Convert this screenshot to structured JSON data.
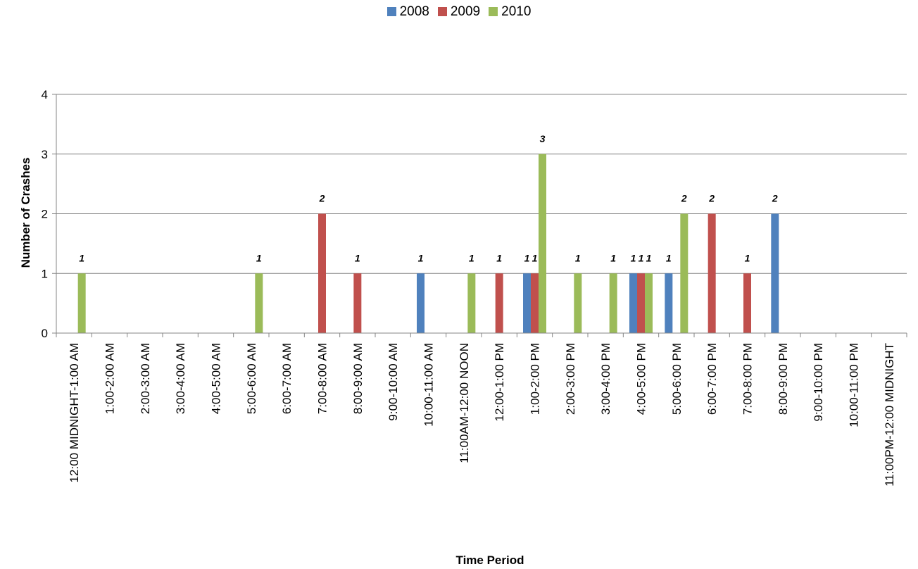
{
  "chart_data": {
    "type": "bar",
    "title": "",
    "xlabel": "Time Period",
    "ylabel": "Number of Crashes",
    "ylim": [
      0,
      4
    ],
    "yticks": [
      0,
      1,
      2,
      3,
      4
    ],
    "grid": true,
    "legend_position": "top",
    "categories": [
      "12:00 MIDNIGHT-1:00 AM",
      "1:00-2:00 AM",
      "2:00-3:00 AM",
      "3:00-4:00 AM",
      "4:00-5:00 AM",
      "5:00-6:00 AM",
      "6:00-7:00 AM",
      "7:00-8:00 AM",
      "8:00-9:00 AM",
      "9:00-10:00 AM",
      "10:00-11:00 AM",
      "11:00AM-12:00 NOON",
      "12:00-1:00 PM",
      "1:00-2:00 PM",
      "2:00-3:00 PM",
      "3:00-4:00 PM",
      "4:00-5:00 PM",
      "5:00-6:00 PM",
      "6:00-7:00 PM",
      "7:00-8:00 PM",
      "8:00-9:00 PM",
      "9:00-10:00 PM",
      "10:00-11:00 PM",
      "11:00PM-12:00 MIDNIGHT"
    ],
    "series": [
      {
        "name": "2008",
        "color": "#4F81BD",
        "values": [
          0,
          0,
          0,
          0,
          0,
          0,
          0,
          0,
          0,
          0,
          1,
          0,
          0,
          1,
          0,
          0,
          1,
          1,
          0,
          0,
          2,
          0,
          0,
          0
        ]
      },
      {
        "name": "2009",
        "color": "#C0504D",
        "values": [
          0,
          0,
          0,
          0,
          0,
          0,
          0,
          2,
          1,
          0,
          0,
          0,
          1,
          1,
          0,
          0,
          1,
          0,
          2,
          1,
          0,
          0,
          0,
          0
        ]
      },
      {
        "name": "2010",
        "color": "#9BBB59",
        "values": [
          1,
          0,
          0,
          0,
          0,
          1,
          0,
          0,
          0,
          0,
          0,
          1,
          0,
          3,
          1,
          1,
          1,
          2,
          0,
          0,
          0,
          0,
          0,
          0
        ]
      }
    ]
  }
}
